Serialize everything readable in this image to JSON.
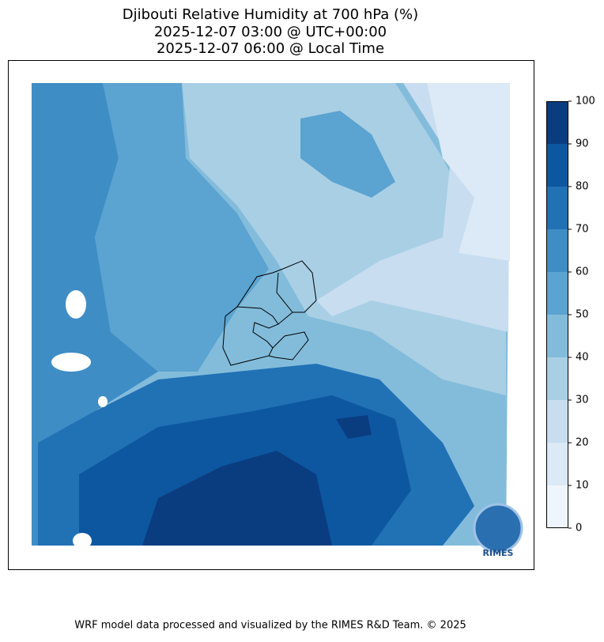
{
  "title_lines": [
    "Djibouti Relative Humidity at 700 hPa (%)",
    "2025-12-07 03:00 @ UTC+00:00",
    "2025-12-07 06:00 @ Local Time"
  ],
  "colorbar": {
    "lim": [
      0,
      100
    ],
    "ticks": [
      0,
      10,
      20,
      30,
      40,
      50,
      60,
      70,
      80,
      90,
      100
    ],
    "colors": [
      "#eff5fc",
      "#dce9f6",
      "#c8ddf0",
      "#a9cfe5",
      "#83bcdb",
      "#5ba3d0",
      "#3f8dc5",
      "#2171b5",
      "#0d57a1",
      "#0a3d80"
    ]
  },
  "logo": "RIMES",
  "footer": "WRF model data processed and visualized by the RIMES R&D Team. © 2025"
}
